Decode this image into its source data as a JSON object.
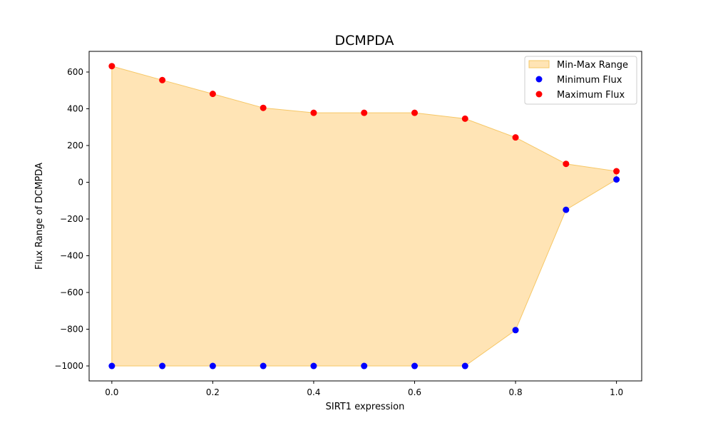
{
  "chart_data": {
    "type": "area",
    "title": "DCMPDA",
    "xlabel": "SIRT1 expression",
    "ylabel": "Flux Range of DCMPDA",
    "xlim": [
      -0.045,
      1.05
    ],
    "ylim": [
      -1081.5,
      712.5
    ],
    "grid": false,
    "legend_position": "top-right",
    "x": [
      0.0,
      0.1,
      0.2,
      0.3,
      0.4,
      0.5,
      0.6,
      0.7,
      0.8,
      0.9,
      1.0
    ],
    "series": [
      {
        "name": "Min-Max Range",
        "kind": "fill_between",
        "color": "#ffe4b5",
        "edge_color": "#f6c766"
      },
      {
        "name": "Minimum Flux",
        "kind": "scatter",
        "color": "#0000ff",
        "values": [
          -1000,
          -1000,
          -1000,
          -1000,
          -1000,
          -1000,
          -1000,
          -1000,
          -805,
          -150,
          15
        ]
      },
      {
        "name": "Maximum Flux",
        "kind": "scatter",
        "color": "#ff0000",
        "values": [
          632,
          556,
          481,
          405,
          378,
          378,
          378,
          346,
          244,
          100,
          60
        ]
      }
    ],
    "x_ticks": [
      {
        "value": 0.0,
        "label": "0.0"
      },
      {
        "value": 0.2,
        "label": "0.2"
      },
      {
        "value": 0.4,
        "label": "0.4"
      },
      {
        "value": 0.6,
        "label": "0.6"
      },
      {
        "value": 0.8,
        "label": "0.8"
      },
      {
        "value": 1.0,
        "label": "1.0"
      }
    ],
    "y_ticks": [
      {
        "value": -1000,
        "label": "−1000"
      },
      {
        "value": -800,
        "label": "−800"
      },
      {
        "value": -600,
        "label": "−600"
      },
      {
        "value": -400,
        "label": "−400"
      },
      {
        "value": -200,
        "label": "−200"
      },
      {
        "value": 0,
        "label": "0"
      },
      {
        "value": 200,
        "label": "200"
      },
      {
        "value": 400,
        "label": "400"
      },
      {
        "value": 600,
        "label": "600"
      }
    ]
  }
}
